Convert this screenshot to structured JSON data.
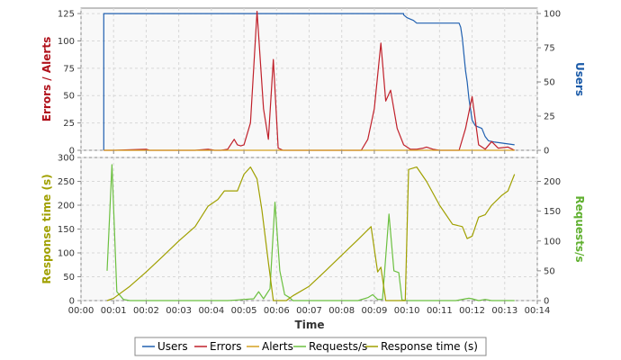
{
  "colors": {
    "users": "#2060b0",
    "errors": "#c0202a",
    "alerts": "#d4a020",
    "requests": "#6cc040",
    "response_time": "#a0a000",
    "users_axis_title": "#1a5aa8",
    "errors_axis_title": "#b0101a",
    "response_axis_title": "#a0a000",
    "requests_axis_title": "#60b030",
    "plot_bg": "#f8f8f8",
    "grid": "#d8d8d8"
  },
  "chart_data": [
    {
      "type": "line",
      "xlabel": "Time",
      "x_ticks": [
        "00:00",
        "00:01",
        "00:02",
        "00:03",
        "00:04",
        "00:05",
        "00:06",
        "00:07",
        "00:08",
        "00:09",
        "00:10",
        "00:11",
        "00:12",
        "00:13",
        "00:14"
      ],
      "xlim_minutes": [
        0,
        14
      ],
      "ylabel_left": "Errors / Alerts",
      "ylabel_right": "Users",
      "yticks_left": [
        "0",
        "25",
        "50",
        "75",
        "100",
        "125"
      ],
      "yticks_right": [
        "0",
        "25",
        "50",
        "75",
        "100"
      ],
      "ylim_left": [
        0,
        130
      ],
      "ylim_right": [
        0,
        104
      ],
      "grid": true,
      "series": [
        {
          "name": "Users",
          "color_key": "users",
          "axis": "right",
          "step": true,
          "points": [
            [
              0.7,
              0
            ],
            [
              0.7,
              100
            ],
            [
              9.9,
              100
            ],
            [
              9.9,
              99
            ],
            [
              10.0,
              97
            ],
            [
              10.1,
              96
            ],
            [
              10.2,
              95
            ],
            [
              10.3,
              93
            ],
            [
              11.6,
              93
            ],
            [
              11.65,
              90
            ],
            [
              11.7,
              82
            ],
            [
              11.75,
              70
            ],
            [
              11.8,
              58
            ],
            [
              11.85,
              50
            ],
            [
              11.9,
              38
            ],
            [
              11.95,
              30
            ],
            [
              12.0,
              22
            ],
            [
              12.1,
              18
            ],
            [
              12.3,
              16
            ],
            [
              12.4,
              10
            ],
            [
              12.5,
              7
            ],
            [
              12.7,
              6
            ],
            [
              13.0,
              5
            ],
            [
              13.3,
              4
            ]
          ]
        },
        {
          "name": "Errors",
          "color_key": "errors",
          "axis": "left",
          "points": [
            [
              0.7,
              0
            ],
            [
              1.0,
              0
            ],
            [
              2.0,
              1
            ],
            [
              2.1,
              0
            ],
            [
              3.0,
              0
            ],
            [
              3.5,
              0
            ],
            [
              3.9,
              1
            ],
            [
              4.1,
              0
            ],
            [
              4.3,
              0
            ],
            [
              4.5,
              1
            ],
            [
              4.7,
              10
            ],
            [
              4.8,
              5
            ],
            [
              4.9,
              4
            ],
            [
              5.0,
              5
            ],
            [
              5.2,
              25
            ],
            [
              5.4,
              127
            ],
            [
              5.6,
              38
            ],
            [
              5.75,
              10
            ],
            [
              5.9,
              83
            ],
            [
              6.05,
              2
            ],
            [
              6.2,
              0
            ],
            [
              7.0,
              0
            ],
            [
              8.0,
              0
            ],
            [
              8.6,
              0
            ],
            [
              8.8,
              10
            ],
            [
              9.0,
              38
            ],
            [
              9.2,
              98
            ],
            [
              9.35,
              45
            ],
            [
              9.5,
              55
            ],
            [
              9.7,
              20
            ],
            [
              9.9,
              5
            ],
            [
              10.1,
              1
            ],
            [
              10.3,
              1
            ],
            [
              10.5,
              2
            ],
            [
              10.6,
              3
            ],
            [
              10.8,
              1
            ],
            [
              11.0,
              0
            ],
            [
              11.6,
              0
            ],
            [
              11.8,
              20
            ],
            [
              12.0,
              49
            ],
            [
              12.2,
              5
            ],
            [
              12.4,
              1
            ],
            [
              12.6,
              8
            ],
            [
              12.8,
              2
            ],
            [
              13.1,
              3
            ],
            [
              13.3,
              0
            ]
          ]
        },
        {
          "name": "Alerts",
          "color_key": "alerts",
          "axis": "left",
          "points": [
            [
              0.7,
              0
            ],
            [
              13.3,
              0
            ]
          ]
        }
      ]
    },
    {
      "type": "line",
      "xlabel": "Time",
      "x_ticks": [
        "00:00",
        "00:01",
        "00:02",
        "00:03",
        "00:04",
        "00:05",
        "00:06",
        "00:07",
        "00:08",
        "00:09",
        "00:10",
        "00:11",
        "00:12",
        "00:13",
        "00:14"
      ],
      "xlim_minutes": [
        0,
        14
      ],
      "ylabel_left": "Response time (s)",
      "ylabel_right": "Requests/s",
      "yticks_left": [
        "0",
        "50",
        "100",
        "150",
        "200",
        "250",
        "300"
      ],
      "yticks_right": [
        "0",
        "50",
        "100",
        "150",
        "200"
      ],
      "ylim_left": [
        0,
        300
      ],
      "ylim_right": [
        0,
        240
      ],
      "grid": true,
      "series": [
        {
          "name": "Requests/s",
          "color_key": "requests",
          "axis": "right",
          "points": [
            [
              0.8,
              50
            ],
            [
              0.95,
              228
            ],
            [
              1.1,
              15
            ],
            [
              1.3,
              2
            ],
            [
              1.5,
              0
            ],
            [
              2.0,
              0
            ],
            [
              4.5,
              0
            ],
            [
              4.8,
              1
            ],
            [
              5.0,
              2
            ],
            [
              5.3,
              3
            ],
            [
              5.45,
              15
            ],
            [
              5.6,
              3
            ],
            [
              5.8,
              20
            ],
            [
              5.95,
              165
            ],
            [
              6.1,
              50
            ],
            [
              6.25,
              10
            ],
            [
              6.4,
              5
            ],
            [
              6.5,
              0
            ],
            [
              7.0,
              0
            ],
            [
              8.5,
              0
            ],
            [
              8.8,
              5
            ],
            [
              8.95,
              10
            ],
            [
              9.1,
              2
            ],
            [
              9.25,
              2
            ],
            [
              9.45,
              145
            ],
            [
              9.6,
              50
            ],
            [
              9.75,
              47
            ],
            [
              9.85,
              1
            ],
            [
              10.0,
              0
            ],
            [
              11.5,
              0
            ],
            [
              11.8,
              3
            ],
            [
              11.9,
              4
            ],
            [
              12.0,
              3
            ],
            [
              12.2,
              0
            ],
            [
              12.4,
              2
            ],
            [
              12.6,
              0
            ],
            [
              13.3,
              0
            ]
          ]
        },
        {
          "name": "Response time (s)",
          "color_key": "response_time",
          "axis": "left",
          "points": [
            [
              0.8,
              0
            ],
            [
              1.0,
              5
            ],
            [
              1.5,
              30
            ],
            [
              2.0,
              60
            ],
            [
              2.5,
              92
            ],
            [
              3.0,
              125
            ],
            [
              3.5,
              155
            ],
            [
              3.9,
              198
            ],
            [
              4.2,
              212
            ],
            [
              4.4,
              230
            ],
            [
              4.5,
              230
            ],
            [
              4.8,
              230
            ],
            [
              5.0,
              265
            ],
            [
              5.2,
              280
            ],
            [
              5.4,
              255
            ],
            [
              5.55,
              190
            ],
            [
              5.75,
              80
            ],
            [
              5.9,
              0
            ],
            [
              6.3,
              0
            ],
            [
              6.5,
              10
            ],
            [
              7.0,
              30
            ],
            [
              7.5,
              62
            ],
            [
              8.0,
              95
            ],
            [
              8.5,
              128
            ],
            [
              8.9,
              155
            ],
            [
              9.1,
              60
            ],
            [
              9.2,
              70
            ],
            [
              9.35,
              0
            ],
            [
              9.8,
              0
            ],
            [
              9.95,
              0
            ],
            [
              10.05,
              275
            ],
            [
              10.3,
              280
            ],
            [
              10.6,
              250
            ],
            [
              11.0,
              200
            ],
            [
              11.4,
              160
            ],
            [
              11.7,
              155
            ],
            [
              11.85,
              130
            ],
            [
              12.0,
              135
            ],
            [
              12.2,
              175
            ],
            [
              12.4,
              180
            ],
            [
              12.6,
              200
            ],
            [
              12.9,
              220
            ],
            [
              13.1,
              230
            ],
            [
              13.3,
              265
            ]
          ]
        }
      ]
    }
  ],
  "legend": [
    "Users",
    "Errors",
    "Alerts",
    "Requests/s",
    "Response time (s)"
  ],
  "legend_color_keys": [
    "users",
    "errors",
    "alerts",
    "requests",
    "response_time"
  ]
}
